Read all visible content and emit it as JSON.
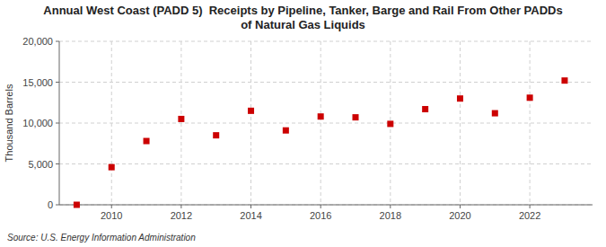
{
  "chart_data": {
    "type": "scatter",
    "title": "Annual West Coast (PADD 5)  Receipts by Pipeline, Tanker, Barge and Rail From Other PADDs\nof Natural Gas Liquids",
    "ylabel": "Thousand Barrels",
    "source": "Source: U.S. Energy Information Administration",
    "x": [
      2009,
      2010,
      2011,
      2012,
      2013,
      2014,
      2015,
      2016,
      2017,
      2018,
      2019,
      2020,
      2021,
      2022,
      2023
    ],
    "values": [
      0,
      4600,
      7800,
      10500,
      8500,
      11500,
      9100,
      10800,
      10700,
      9900,
      11700,
      13000,
      11200,
      13100,
      15200
    ],
    "color": "#cc0000",
    "marker": "square",
    "xlim": [
      2008.5,
      2023.8
    ],
    "xticks": [
      2010,
      2012,
      2014,
      2016,
      2018,
      2020,
      2022
    ],
    "ylim": [
      0,
      20000
    ],
    "yticks": [
      0,
      {
        "value": 5000,
        "label": "5,000"
      },
      {
        "value": 10000,
        "label": "10,000"
      },
      {
        "value": 15000,
        "label": "15,000"
      },
      {
        "value": 20000,
        "label": "20,000"
      }
    ],
    "grid": true
  }
}
